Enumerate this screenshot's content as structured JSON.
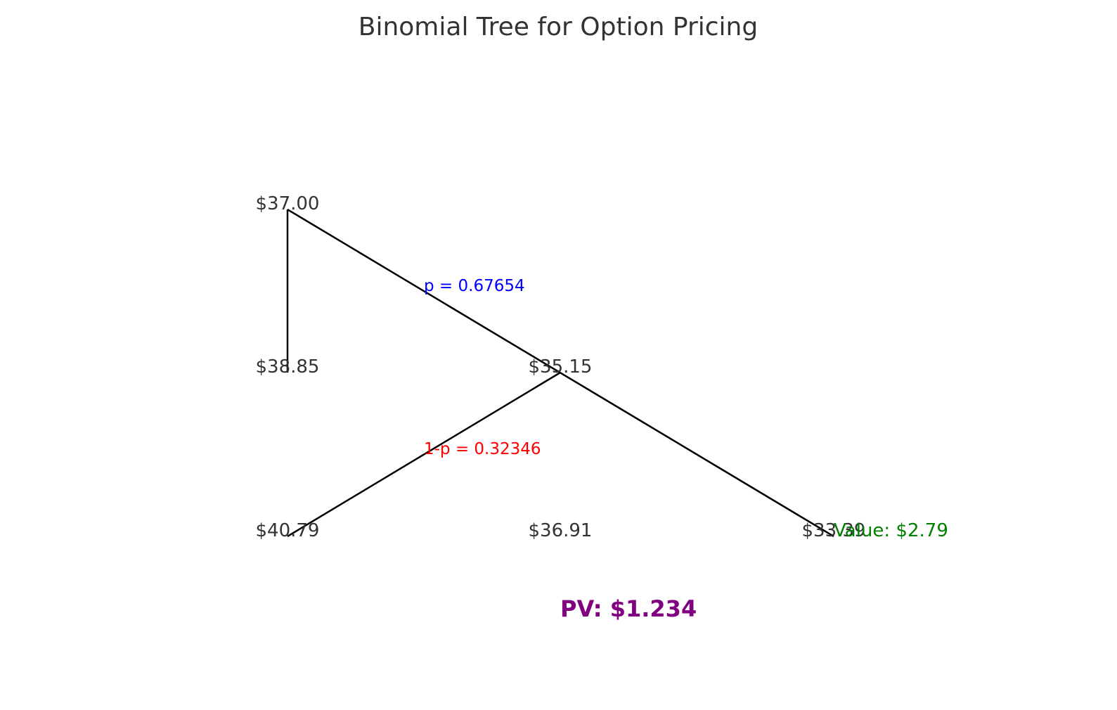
{
  "title": "Binomial Tree for Option Pricing",
  "nodes": {
    "n0_0": "$37.00",
    "n1_0": "$38.85",
    "n1_1": "$35.15",
    "n2_0": "$40.79",
    "n2_1": "$36.91",
    "n2_2": "$33.39"
  },
  "probabilities": {
    "up": "p = 0.67654",
    "down": "1-p = 0.32346"
  },
  "terminal_value": "Value: $2.79",
  "present_value": "PV: $1.234",
  "colors": {
    "up_probability": "#0000ff",
    "down_probability": "#ff0000",
    "terminal_value": "#008000",
    "present_value": "#800080",
    "node_text": "#333333",
    "edge": "#000000"
  }
}
